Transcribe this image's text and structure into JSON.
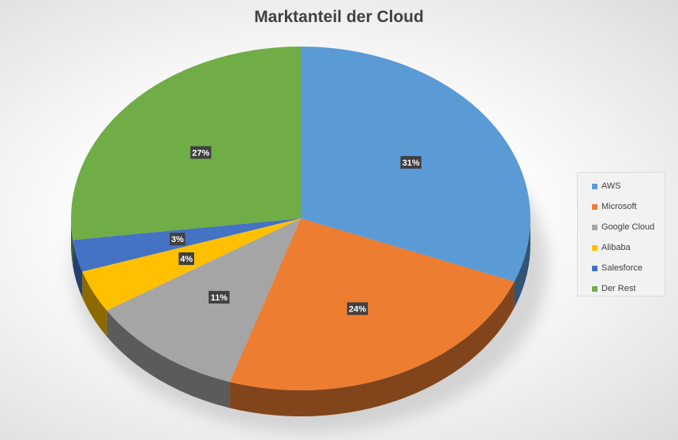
{
  "chart_data": {
    "type": "pie",
    "title": "Marktanteil der Cloud",
    "categories": [
      "AWS",
      "Microsoft",
      "Google Cloud",
      "Alibaba",
      "Salesforce",
      "Der Rest"
    ],
    "values": [
      31,
      24,
      11,
      4,
      3,
      27
    ],
    "labels": [
      "31%",
      "24%",
      "11%",
      "4%",
      "3%",
      "27%"
    ],
    "colors": [
      "#5b9bd5",
      "#ed7d31",
      "#a5a5a5",
      "#ffc000",
      "#4472c4",
      "#70ad47"
    ],
    "style": "3d",
    "legend_position": "right"
  }
}
